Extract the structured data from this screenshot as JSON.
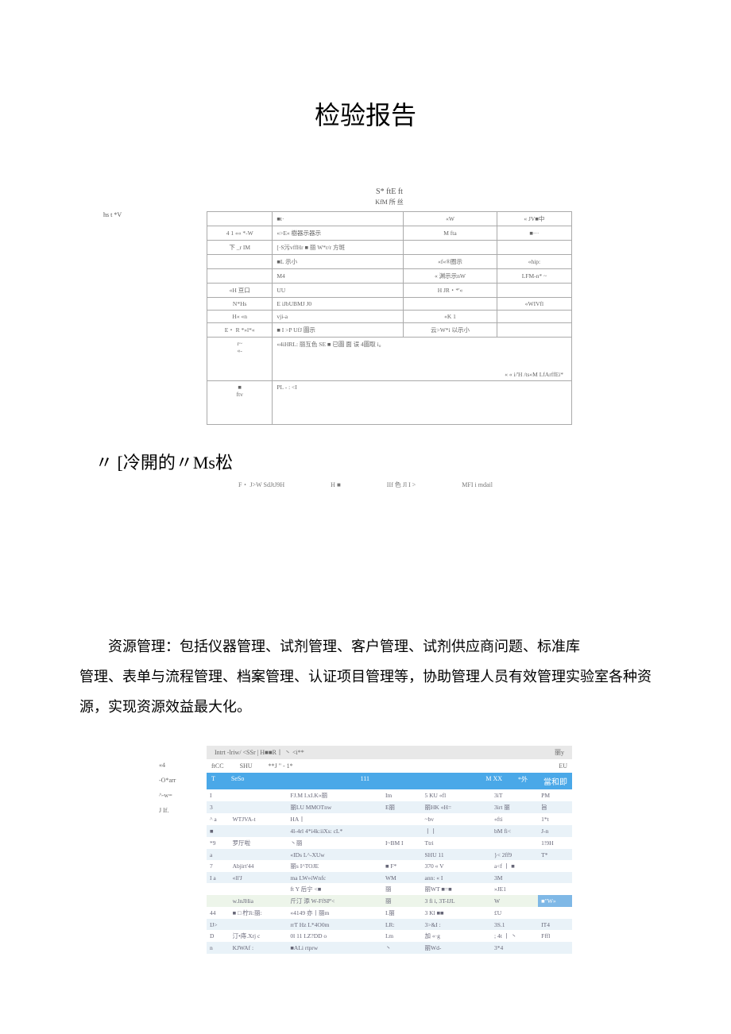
{
  "page_title": "检验报告",
  "form": {
    "caption": "S* ftE ft",
    "subcaption": "KfM 所 丝",
    "side_label": "hs t *V",
    "rows": [
      {
        "c1": "",
        "c2": "■t·",
        "c3": "«W",
        "c4": "« JV■中"
      },
      {
        "c1": "4     1 «« *-W",
        "c2": "«>E« 樹器示器示",
        "c3": "M fta",
        "c4": "■···"
      },
      {
        "c1": "下 _r IM",
        "c2": "[·S污vffHr ■ 丽 W*r/r 方斑",
        "c3": "",
        "c4": ""
      },
      {
        "c1": "",
        "c2": "■L 示小",
        "c3": "«f«®圈示",
        "c4": "«hip:"
      },
      {
        "c1": "",
        "c2": "M4",
        "c3": "« 渊示示nW",
        "c4": "LFM-n* ~"
      },
      {
        "c1": "«H       亘口",
        "c2": "UU",
        "c3": "H JR・*'«",
        "c4": ""
      },
      {
        "c1": "N*Hs",
        "c2": "E iJbUBMJ J0",
        "c3": "",
        "c4": "«WIVfl"
      },
      {
        "c1": "H« «n",
        "c2": "vji-a",
        "c3": "«K 1",
        "c4": ""
      },
      {
        "c1": "E・ R *»l*«",
        "c2": "■ I >P UfJ 圖示",
        "c3": "云>W*i        以示小",
        "c4": ""
      }
    ],
    "tall1": {
      "c1a": "r~",
      "c1b": "«-",
      "c2": "«4iHRL: 丽互色 SE ■ 已圖 面 误 4圖取 i。"
    },
    "sig": "« « i/'H /ts«M LfArffEi*",
    "tall2": {
      "c1a": "■",
      "c1b": "ftv",
      "c2": "PL - : <I"
    }
  },
  "quote": "〃 [冷開的〃Ms松",
  "footnotes": {
    "a": "F・ J>W SdJtJ9H",
    "b": "H ■",
    "c": "IIf 色 Jl I >",
    "d": "MFI i mdail"
  },
  "paragraph1": "资源管理：包括仪器管理、试剂管理、客户管理、试剂供应商问题、标准库",
  "paragraph2": "管理、表单与流程管理、档案管理、认证项目管理等，协助管理人员有效管理实验室各种资源，实现资源效益最大化。",
  "bottom": {
    "head_left": "Intrt -lriw/ <SSr | H■■R丨 丶 <i**",
    "head_right": "丽y",
    "sidebar": [
      "«4",
      "-O*arr",
      "^-w=",
      "J If."
    ],
    "tabs_left": "ftCC",
    "tabs_mid": "SHU",
    "tabs_right1": "**J \" - 1*",
    "tabs_right2": "EU",
    "banner_a": "T",
    "banner_b": "SeSo",
    "banner_c": "111",
    "banner_d": "M XX",
    "banner_e": "*外",
    "banner_f": "當和即",
    "rows": [
      {
        "cls": "",
        "d": [
          "I",
          "",
          "FJ.M  I.xI.K»丽",
          "Im",
          "5 KU «fl",
          "",
          "3iT",
          "PM"
        ]
      },
      {
        "cls": "stripe",
        "d": [
          "3",
          "",
          "丽LU  MMOTnw",
          "E丽",
          "丽HK «H=",
          "",
          "3irt 丽",
          "旨"
        ]
      },
      {
        "cls": "",
        "d": [
          "^ a",
          "WTJVA-t",
          "HA丨",
          "",
          "~bv",
          "",
          "«fti",
          "1*t"
        ]
      },
      {
        "cls": "stripe",
        "d": [
          "■",
          "",
          "4l-4rl  4*i4k:iiXs: cL*",
          "",
          "丨丨",
          "",
          "bM  fi<",
          "J-n"
        ]
      },
      {
        "cls": "",
        "d": [
          "*9",
          "罗厅啦",
          "丶丽",
          "I~BM I",
          "Ttri",
          "",
          "",
          "1!9H"
        ]
      },
      {
        "cls": "stripe",
        "d": [
          "a",
          "",
          "«IDs  L^-XUw",
          "",
          "SHU  11",
          "",
          "}<   2ff9",
          "T*"
        ]
      },
      {
        "cls": "",
        "d": [
          "7",
          "Abjirt'44",
          "丽s   I^TOJE",
          "■ F*",
          "370   « V",
          "",
          "a<f  丨 ■",
          ""
        ]
      },
      {
        "cls": "stripe",
        "d": [
          "I a",
          "«ll'J",
          "ma   LW»iWnfc",
          "WM",
          "ann:   « I",
          "",
          "3M",
          ""
        ]
      },
      {
        "cls": "",
        "d": [
          "",
          "",
          "ft Y   后宁 <■",
          "丽",
          "丽WT ■=■",
          "",
          "»JE1",
          ""
        ]
      },
      {
        "cls": "stripe-g",
        "d": [
          "",
          "w.lnJHia",
          "斤汀 添  W-FfSP'<",
          "丽",
          "3 fi i,  3T-IJL",
          "",
          "W",
          "■\"W»"
        ]
      },
      {
        "cls": "",
        "d": [
          "44",
          "■ □ 柠Ji:丽:",
          "«4149 亦丨丽m",
          "I.丽",
          "3 Kl  ■■",
          "",
          "£U",
          ""
        ]
      },
      {
        "cls": "stripe",
        "d": [
          "IJ>",
          "",
          "rrT Hz  L*4O0m",
          "LR:",
          "3>&I :",
          "",
          "3S.1",
          "IT4"
        ]
      },
      {
        "cls": "",
        "d": [
          "D",
          "汀•庤.Xrj c",
          "0l 11  LZ?DD o",
          "I.m",
          "加  «·g",
          "",
          "; 4t  丨 丶",
          "Fffl"
        ]
      },
      {
        "cls": "stripe",
        "d": [
          "n",
          "KJWAf :",
          "■ALi  rtprw",
          "丶",
          "丽Wd-",
          "",
          "3*4",
          ""
        ]
      }
    ]
  },
  "colors": {
    "banner_blue": "#4aa8e8",
    "stripe_blue": "#e9f2f8",
    "stripe_green": "#edf5ea",
    "border_gray": "#aaaaaa"
  }
}
